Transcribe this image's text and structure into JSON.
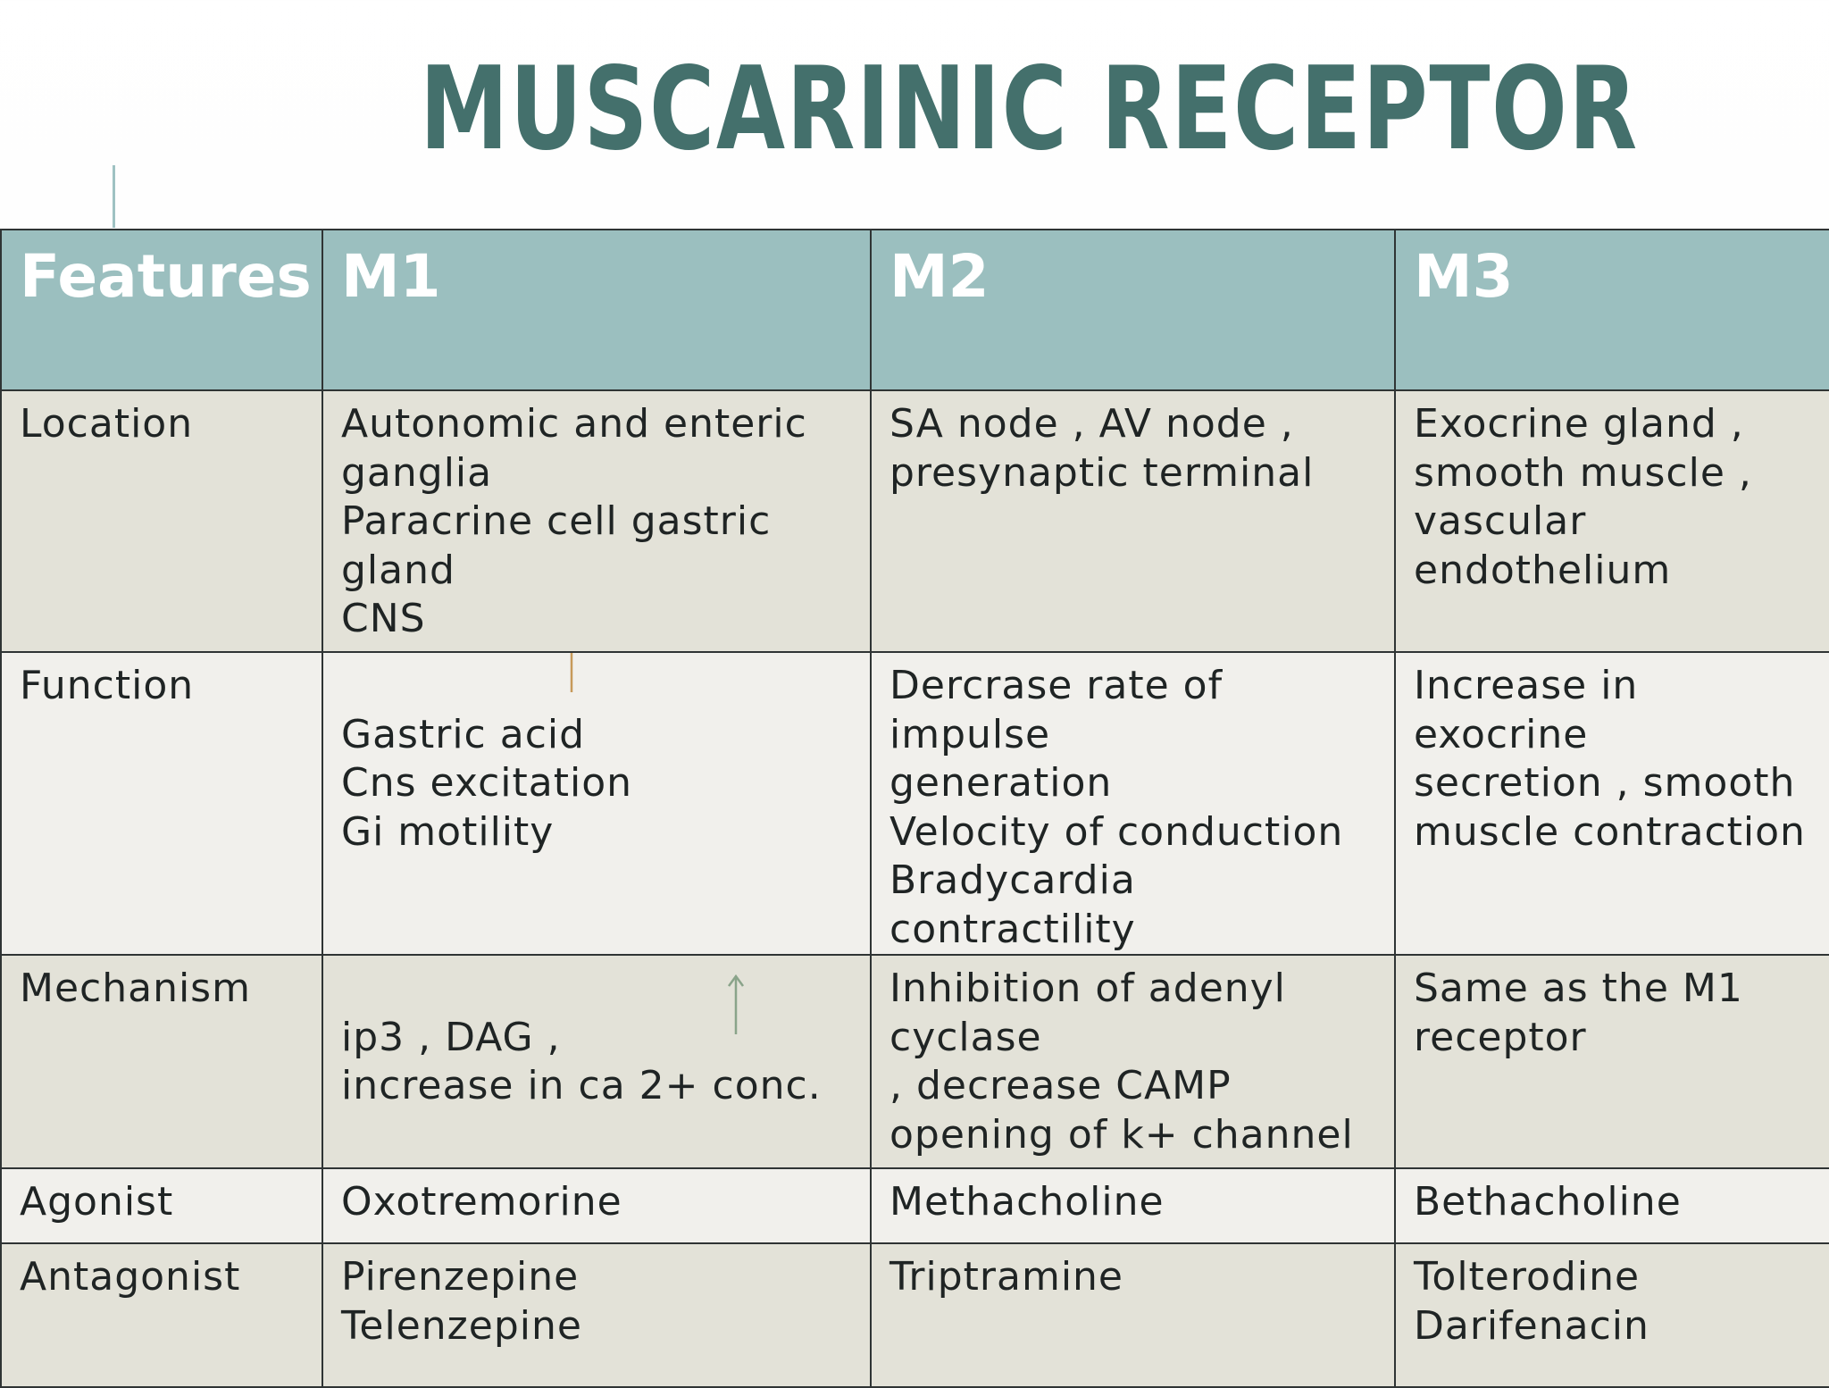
{
  "title": "MUSCARINIC RECEPTOR",
  "colors": {
    "title": "#44706c",
    "header_bg": "#9bbfbf",
    "row_dark": "#e3e2d8",
    "row_light": "#f1f0ec",
    "arrow_orange": "#c79a5a",
    "arrow_green": "#8aa48a"
  },
  "table": {
    "headers": [
      "Features",
      "M1",
      "M2",
      "M3"
    ],
    "rows": [
      {
        "feature": "Location",
        "m1": "Autonomic and enteric\nganglia\nParacrine cell gastric\ngland\nCNS",
        "m2": "SA node , AV node ,\npresynaptic terminal",
        "m3": "Exocrine gland ,\nsmooth muscle ,\nvascular\nendothelium"
      },
      {
        "feature": "Function",
        "m1": "Gastric acid\nCns excitation\nGi motility",
        "m2": "Dercrase rate of impulse\ngeneration\nVelocity of conduction\nBradycardia\n contractility",
        "m3": "Increase in exocrine\nsecretion , smooth\nmuscle contraction"
      },
      {
        "feature": "Mechanism",
        "m1": "    ip3 ,    DAG ,\nincrease in ca 2+ conc.",
        "m2": "Inhibition of adenyl\ncyclase\n, decrease CAMP\nopening of  k+ channel",
        "m3": "Same as the M1\nreceptor"
      },
      {
        "feature": "Agonist",
        "m1": "Oxotremorine",
        "m2": "Methacholine",
        "m3": "Bethacholine"
      },
      {
        "feature": "Antagonist",
        "m1": "Pirenzepine\nTelenzepine",
        "m2": "Triptramine",
        "m3": "Tolterodine\nDarifenacin"
      }
    ]
  },
  "icons": {
    "function_arrow": "up-arrow-icon",
    "mechanism_arrow": "up-arrow-icon"
  }
}
